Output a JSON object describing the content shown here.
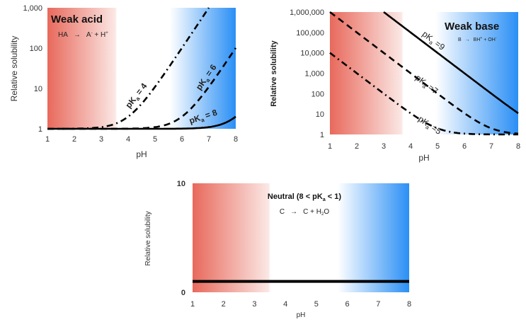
{
  "chart_data": [
    {
      "type": "line",
      "id": "acid",
      "title": "Weak acid",
      "reaction": {
        "left": "HA",
        "arrow": "→",
        "right_a": "A",
        "right_a_sup": "-",
        "plus": " + H",
        "right_h_sup": "+"
      },
      "xlabel": "pH",
      "ylabel": "Relative solubility",
      "yscale": "log",
      "xlim": [
        1,
        8
      ],
      "ylim": [
        1,
        1000
      ],
      "xticks": [
        "1",
        "2",
        "3",
        "4",
        "5",
        "6",
        "7",
        "8"
      ],
      "yticks": [
        {
          "v": 1,
          "label": "1"
        },
        {
          "v": 10,
          "label": "10"
        },
        {
          "v": 100,
          "label": "100"
        },
        {
          "v": 1000,
          "label": "1,000"
        }
      ],
      "background": "red-to-blue pH gradient",
      "series": [
        {
          "name": "pKa = 4",
          "pKa": 4,
          "style": "dashdot",
          "label_main": "pK",
          "label_sub": "a",
          "label_tail": " = 4",
          "label_at_x": 4.7
        },
        {
          "name": "pKa = 6",
          "pKa": 6,
          "style": "dashed",
          "label_main": "pK",
          "label_sub": "a",
          "label_tail": " = 6",
          "label_at_x": 7.25
        },
        {
          "name": "pKa = 8",
          "pKa": 8,
          "style": "solid",
          "label_main": "pK",
          "label_sub": "a",
          "label_tail": " = 8",
          "label_at_x": 7.4
        }
      ]
    },
    {
      "type": "line",
      "id": "base",
      "title": "Weak base",
      "reaction": {
        "left": "B",
        "arrow": "→",
        "right": "BH",
        "right_sup": "+",
        "plus": " + OH",
        "right_oh_sup": "-"
      },
      "xlabel": "pH",
      "ylabel": "Relative solubility",
      "yscale": "log",
      "xlim": [
        1,
        8
      ],
      "ylim": [
        1,
        1000000
      ],
      "xticks": [
        "1",
        "2",
        "3",
        "4",
        "5",
        "6",
        "7",
        "8"
      ],
      "yticks": [
        {
          "v": 1,
          "label": "1"
        },
        {
          "v": 10,
          "label": "10"
        },
        {
          "v": 100,
          "label": "100"
        },
        {
          "v": 1000,
          "label": "1,000"
        },
        {
          "v": 10000,
          "label": "10,000"
        },
        {
          "v": 100000,
          "label": "100,000"
        },
        {
          "v": 1000000,
          "label": "1,000,000"
        }
      ],
      "background": "red-to-blue pH gradient",
      "series": [
        {
          "name": "pKa = 9",
          "pKa": 9,
          "style": "solid",
          "label_main": "pK",
          "label_sub": "a",
          "label_tail": " =9",
          "label_at_x": 4.2
        },
        {
          "name": "pKa = 7",
          "pKa": 7,
          "style": "dashed",
          "label_main": "pK",
          "label_sub": "a",
          "label_tail": " =7",
          "label_at_x": 4.0
        },
        {
          "name": "pKa = 5",
          "pKa": 5,
          "style": "dashdot",
          "label_main": "pK",
          "label_sub": "a",
          "label_tail": " =5",
          "label_at_x": 4.0
        }
      ]
    },
    {
      "type": "line",
      "id": "neutral",
      "title_main": "Neutral (8  < pK",
      "title_sub": "a",
      "title_tail": " < 1)",
      "reaction": {
        "left": "C",
        "arrow": "→",
        "right": "C + H",
        "right_sub": "2",
        "right_tail": "O"
      },
      "xlabel": "pH",
      "ylabel": "Relative solubility",
      "yscale": "linear",
      "xlim": [
        1,
        8
      ],
      "ylim": [
        0,
        10
      ],
      "xticks": [
        "1",
        "2",
        "3",
        "4",
        "5",
        "6",
        "7",
        "8"
      ],
      "yticks": [
        {
          "v": 0,
          "label": "0"
        },
        {
          "v": 10,
          "label": "10"
        }
      ],
      "background": "red-to-blue pH gradient",
      "series": [
        {
          "name": "Neutral",
          "style": "solid-thick",
          "x": [
            1,
            8
          ],
          "y": [
            1,
            1
          ]
        }
      ]
    }
  ],
  "colors": {
    "acidic": "#e8695c",
    "neutral": "#ffffff",
    "basic": "#2a8ff5",
    "line": "#000000"
  }
}
